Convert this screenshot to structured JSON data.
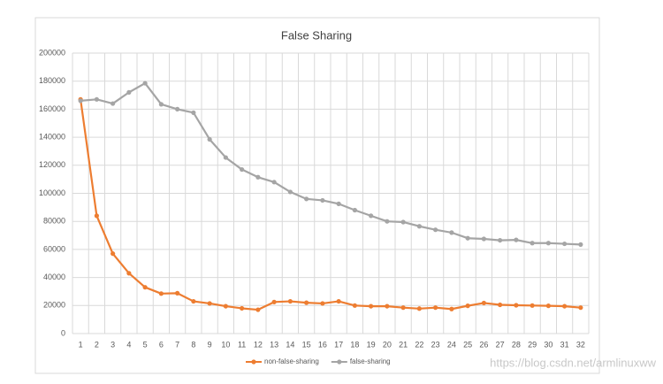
{
  "chart_data": {
    "type": "line",
    "title": "False Sharing",
    "categories": [
      "1",
      "2",
      "3",
      "4",
      "5",
      "6",
      "7",
      "8",
      "9",
      "10",
      "11",
      "12",
      "13",
      "14",
      "15",
      "16",
      "17",
      "18",
      "19",
      "20",
      "21",
      "22",
      "23",
      "24",
      "25",
      "26",
      "27",
      "28",
      "29",
      "30",
      "31",
      "32"
    ],
    "series": [
      {
        "name": "non-false-sharing",
        "color": "#ed7d31",
        "values": [
          167000,
          84000,
          57000,
          43000,
          33000,
          28500,
          28800,
          23000,
          21500,
          19500,
          18000,
          17000,
          22500,
          23000,
          22000,
          21500,
          23000,
          20000,
          19500,
          19500,
          18500,
          17800,
          18500,
          17500,
          19800,
          21800,
          20500,
          20200,
          20000,
          19800,
          19500,
          18500
        ]
      },
      {
        "name": "false-sharing",
        "color": "#a5a5a5",
        "values": [
          166000,
          167000,
          164000,
          172000,
          178500,
          163500,
          160000,
          157500,
          138500,
          125500,
          117000,
          111500,
          108000,
          101000,
          96000,
          95000,
          92500,
          88000,
          84000,
          80000,
          79500,
          76500,
          74000,
          72000,
          68000,
          67500,
          66500,
          66800,
          64500,
          64500,
          64000,
          63500
        ]
      }
    ],
    "ylim": [
      0,
      200000
    ],
    "yticks": [
      0,
      20000,
      40000,
      60000,
      80000,
      100000,
      120000,
      140000,
      160000,
      180000,
      200000
    ],
    "grid": true,
    "legend": "bottom",
    "watermark": "https://blog.csdn.net/armlinuxww"
  }
}
